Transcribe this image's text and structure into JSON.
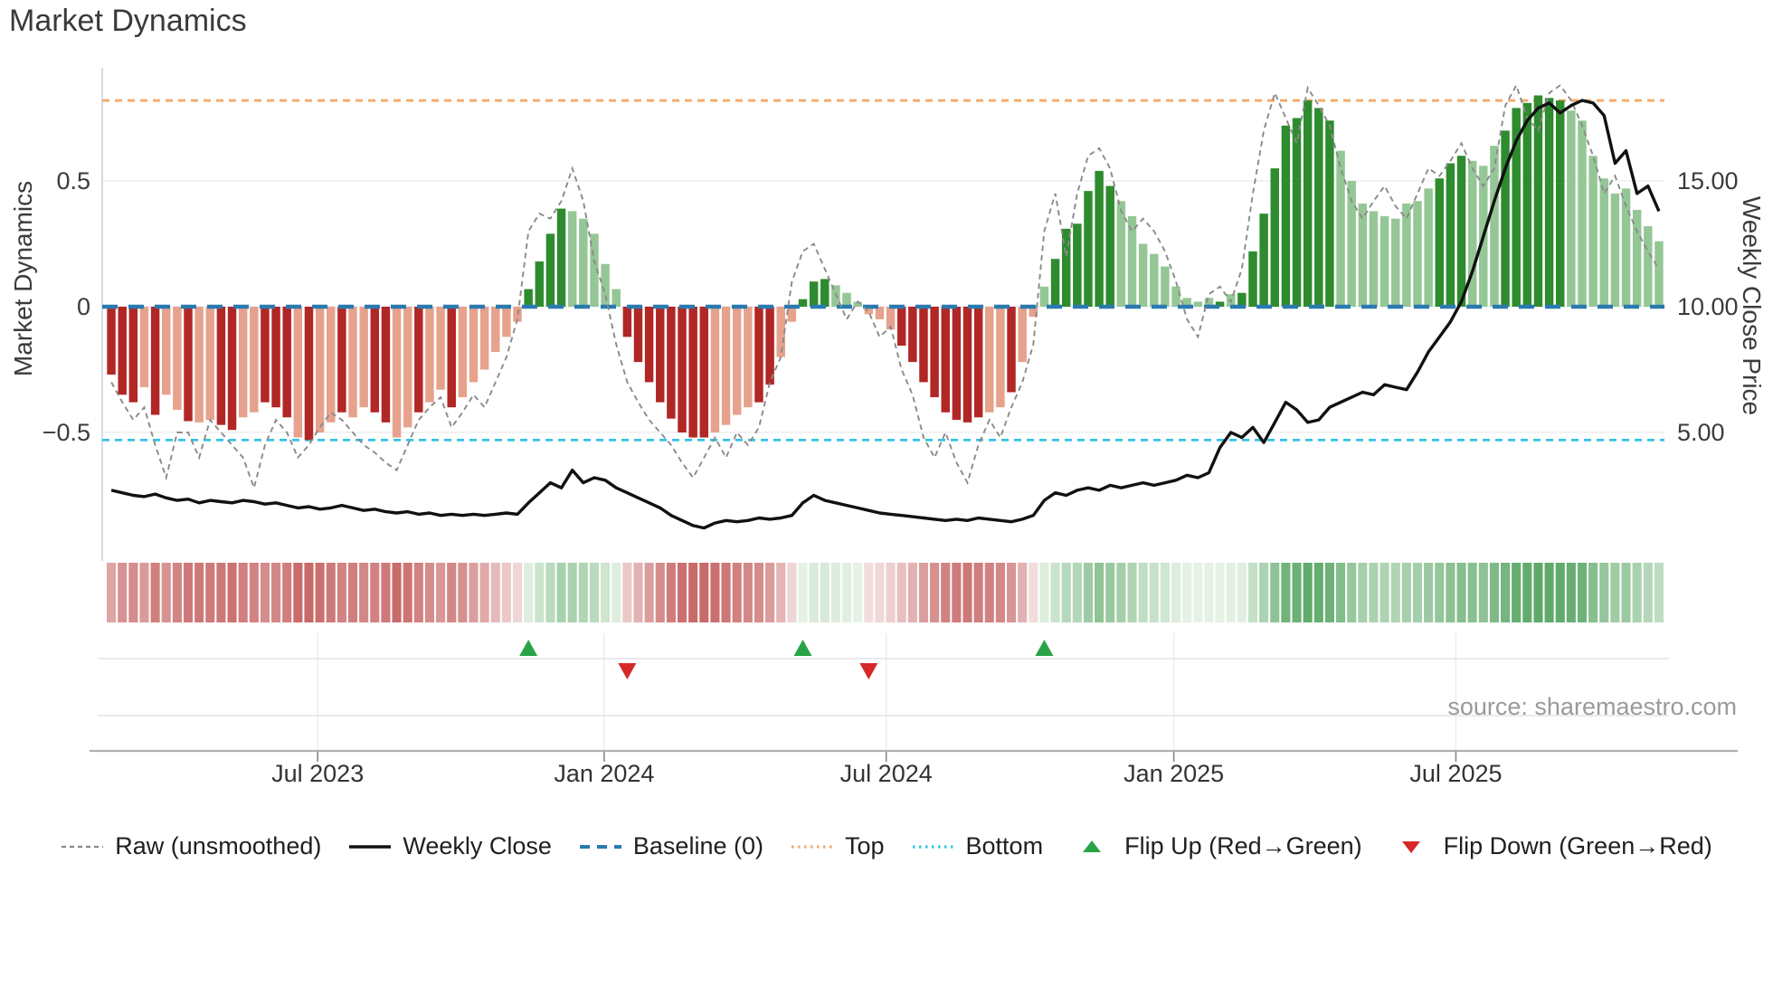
{
  "title": "Market Dynamics",
  "source": "source: sharemaestro.com",
  "axes": {
    "left_label": "Market Dynamics",
    "right_label": "Weekly Close Price",
    "left_ticks": [
      {
        "label": "0.5",
        "value": 0.5
      },
      {
        "label": "0",
        "value": 0.0
      },
      {
        "label": "−0.5",
        "value": -0.5
      }
    ],
    "right_ticks": [
      {
        "label": "15.00",
        "price": 15.0
      },
      {
        "label": "10.00",
        "price": 10.0
      },
      {
        "label": "5.00",
        "price": 5.0
      }
    ],
    "x_ticks": [
      {
        "label": "Jul 2023",
        "week": 19.3
      },
      {
        "label": "Jan 2024",
        "week": 45.4
      },
      {
        "label": "Jul 2024",
        "week": 71.1
      },
      {
        "label": "Jan 2025",
        "week": 97.3
      },
      {
        "label": "Jul 2025",
        "week": 123.0
      }
    ]
  },
  "legend": {
    "items": [
      {
        "name": "legend-item-raw",
        "swatch": "dash-gray",
        "label": "Raw (unsmoothed)"
      },
      {
        "name": "legend-item-close",
        "swatch": "solid-black",
        "label": "Weekly Close"
      },
      {
        "name": "legend-item-baseline",
        "swatch": "dash-blue",
        "label": "Baseline (0)"
      },
      {
        "name": "legend-item-top",
        "swatch": "dot-orange",
        "label": "Top"
      },
      {
        "name": "legend-item-bottom",
        "swatch": "dot-cyan",
        "label": "Bottom"
      },
      {
        "name": "legend-item-flip-up",
        "swatch": "triangle-up",
        "label": "Flip Up (Red→Green)"
      },
      {
        "name": "legend-item-flip-down",
        "swatch": "triangle-down",
        "label": "Flip Down (Green→Red)"
      }
    ]
  },
  "colors": {
    "bar_dark_red": "#b02725",
    "bar_light_red": "#e6a28d",
    "bar_dark_green": "#2e8b2e",
    "bar_light_green": "#94c795",
    "baseline_blue": "#2a7ab0",
    "top_orange": "#f2aa6b",
    "bottom_cyan": "#35c3e8",
    "raw_gray": "#8a8a8a",
    "close_black": "#111111",
    "marker_green": "#2aa347",
    "marker_red": "#d62828",
    "grid": "#ebedf2",
    "spine": "#cfd2da",
    "bottom_axis": "#b0b0b0",
    "tick_text": "#3b3b3b"
  },
  "chart_data": {
    "type": "composite: weekly bar oscillator + dashed raw line + weekly close price line (right axis) + heatmap strip + flip-event markers",
    "x_unit": "weeks",
    "n_weeks": 142,
    "x_range_note": "weekly data from early 2023 to late 2025; ticks at Jul 2023, Jan 2024, Jul 2024, Jan 2025, Jul 2025",
    "ylim_left": [
      -1.0,
      0.95
    ],
    "ylim_right": [
      0,
      19.5
    ],
    "grid": "horizontal only, at -0.5 / 0 / 0.5",
    "legend_position": "bottom center, single row",
    "reference_lines": {
      "baseline": 0.0,
      "top": 0.82,
      "bottom": -0.53
    },
    "flip_up_weeks": [
      38,
      63,
      85
    ],
    "flip_down_weeks": [
      47,
      69
    ],
    "series": [
      {
        "name": "Market Dynamics (bars)",
        "type": "bar",
        "axis": "left",
        "shade_pattern": "dddldlldllddlldddldlldllddlldlldllllllddddlllllddddddddllllddlldddlllllldddddddddlldlllddddddllllllllldlddddddddllllllllldddclll",
        "shade_pattern_fixed": "dddldlldllddlldddldlldllddlldlldllllllddddlllllddddddddllllddlldddllllllddddddddlldlllddddddllllllllldldddddddddllllllllldddlllddddddlllllllllll",
        "values": [
          -0.27,
          -0.35,
          -0.38,
          -0.32,
          -0.43,
          -0.35,
          -0.41,
          -0.455,
          -0.46,
          -0.45,
          -0.47,
          -0.49,
          -0.44,
          -0.42,
          -0.38,
          -0.4,
          -0.44,
          -0.52,
          -0.53,
          -0.5,
          -0.46,
          -0.42,
          -0.44,
          -0.4,
          -0.42,
          -0.46,
          -0.52,
          -0.48,
          -0.42,
          -0.38,
          -0.33,
          -0.4,
          -0.36,
          -0.3,
          -0.25,
          -0.18,
          -0.12,
          -0.06,
          0.07,
          0.18,
          0.29,
          0.39,
          0.38,
          0.35,
          0.29,
          0.17,
          0.07,
          -0.12,
          -0.22,
          -0.3,
          -0.38,
          -0.445,
          -0.5,
          -0.52,
          -0.52,
          -0.5,
          -0.47,
          -0.43,
          -0.4,
          -0.38,
          -0.31,
          -0.2,
          -0.06,
          0.03,
          0.1,
          0.11,
          0.085,
          0.055,
          0.02,
          -0.03,
          -0.05,
          -0.09,
          -0.155,
          -0.22,
          -0.3,
          -0.36,
          -0.42,
          -0.45,
          -0.46,
          -0.44,
          -0.42,
          -0.4,
          -0.34,
          -0.22,
          -0.04,
          0.08,
          0.19,
          0.31,
          0.33,
          0.46,
          0.54,
          0.48,
          0.42,
          0.36,
          0.25,
          0.21,
          0.16,
          0.08,
          0.035,
          0.02,
          0.035,
          0.02,
          0.05,
          0.055,
          0.22,
          0.37,
          0.55,
          0.72,
          0.75,
          0.82,
          0.79,
          0.74,
          0.62,
          0.5,
          0.41,
          0.38,
          0.36,
          0.35,
          0.41,
          0.42,
          0.47,
          0.51,
          0.57,
          0.6,
          0.58,
          0.56,
          0.64,
          0.7,
          0.79,
          0.81,
          0.84,
          0.83,
          0.82,
          0.78,
          0.74,
          0.6,
          0.51,
          0.45,
          0.47,
          0.385,
          0.32,
          0.26
        ]
      },
      {
        "name": "Raw (unsmoothed)",
        "type": "line",
        "style": "dashed",
        "axis": "left",
        "values": [
          -0.3,
          -0.38,
          -0.45,
          -0.4,
          -0.55,
          -0.68,
          -0.5,
          -0.5,
          -0.6,
          -0.45,
          -0.5,
          -0.55,
          -0.6,
          -0.72,
          -0.55,
          -0.45,
          -0.5,
          -0.6,
          -0.55,
          -0.48,
          -0.42,
          -0.45,
          -0.5,
          -0.55,
          -0.58,
          -0.62,
          -0.65,
          -0.55,
          -0.45,
          -0.4,
          -0.36,
          -0.48,
          -0.42,
          -0.35,
          -0.4,
          -0.3,
          -0.2,
          -0.05,
          0.3,
          0.37,
          0.35,
          0.42,
          0.55,
          0.42,
          0.18,
          0.05,
          -0.15,
          -0.3,
          -0.38,
          -0.45,
          -0.5,
          -0.55,
          -0.62,
          -0.68,
          -0.6,
          -0.52,
          -0.6,
          -0.5,
          -0.55,
          -0.48,
          -0.3,
          -0.2,
          0.1,
          0.22,
          0.25,
          0.15,
          0.05,
          -0.05,
          0.02,
          -0.02,
          -0.12,
          -0.08,
          -0.25,
          -0.35,
          -0.52,
          -0.6,
          -0.5,
          -0.62,
          -0.7,
          -0.55,
          -0.45,
          -0.52,
          -0.4,
          -0.3,
          -0.15,
          0.3,
          0.45,
          0.2,
          0.45,
          0.6,
          0.63,
          0.55,
          0.38,
          0.3,
          0.35,
          0.3,
          0.22,
          0.1,
          -0.05,
          -0.12,
          0.05,
          0.08,
          0.02,
          0.15,
          0.45,
          0.7,
          0.85,
          0.75,
          0.65,
          0.87,
          0.8,
          0.72,
          0.55,
          0.42,
          0.35,
          0.42,
          0.48,
          0.4,
          0.35,
          0.45,
          0.55,
          0.52,
          0.58,
          0.65,
          0.55,
          0.48,
          0.55,
          0.8,
          0.88,
          0.75,
          0.7,
          0.85,
          0.88,
          0.82,
          0.72,
          0.6,
          0.45,
          0.52,
          0.4,
          0.3,
          0.22,
          0.15
        ]
      },
      {
        "name": "Weekly Close",
        "type": "line",
        "style": "solid",
        "axis": "right",
        "values": [
          2.7,
          2.6,
          2.5,
          2.45,
          2.55,
          2.4,
          2.3,
          2.35,
          2.2,
          2.3,
          2.25,
          2.2,
          2.3,
          2.25,
          2.15,
          2.2,
          2.1,
          2.0,
          2.05,
          1.95,
          2.0,
          2.1,
          2.0,
          1.9,
          1.95,
          1.85,
          1.8,
          1.85,
          1.75,
          1.8,
          1.7,
          1.75,
          1.7,
          1.75,
          1.7,
          1.75,
          1.8,
          1.75,
          2.2,
          2.6,
          3.0,
          2.8,
          3.5,
          3.0,
          3.2,
          3.1,
          2.8,
          2.6,
          2.4,
          2.2,
          2.0,
          1.7,
          1.5,
          1.3,
          1.2,
          1.4,
          1.5,
          1.45,
          1.5,
          1.6,
          1.55,
          1.6,
          1.7,
          2.2,
          2.5,
          2.3,
          2.2,
          2.1,
          2.0,
          1.9,
          1.8,
          1.75,
          1.7,
          1.65,
          1.6,
          1.55,
          1.5,
          1.55,
          1.5,
          1.6,
          1.55,
          1.5,
          1.45,
          1.55,
          1.7,
          2.3,
          2.6,
          2.5,
          2.7,
          2.8,
          2.7,
          2.9,
          2.8,
          2.9,
          3.0,
          2.9,
          3.0,
          3.1,
          3.3,
          3.2,
          3.4,
          4.4,
          5.0,
          4.8,
          5.2,
          4.6,
          5.4,
          6.2,
          5.9,
          5.4,
          5.5,
          6.0,
          6.2,
          6.4,
          6.6,
          6.5,
          6.9,
          6.8,
          6.7,
          7.4,
          8.2,
          8.8,
          9.4,
          10.2,
          11.4,
          12.8,
          14.2,
          15.5,
          16.6,
          17.4,
          17.9,
          18.1,
          17.7,
          18.0,
          18.2,
          18.1,
          17.6,
          15.7,
          16.2,
          14.5,
          14.8,
          13.8
        ]
      }
    ],
    "heatmap": {
      "note": "one cell per week below main plot; color intensity mirrors bar values (red negative, green positive)"
    }
  }
}
